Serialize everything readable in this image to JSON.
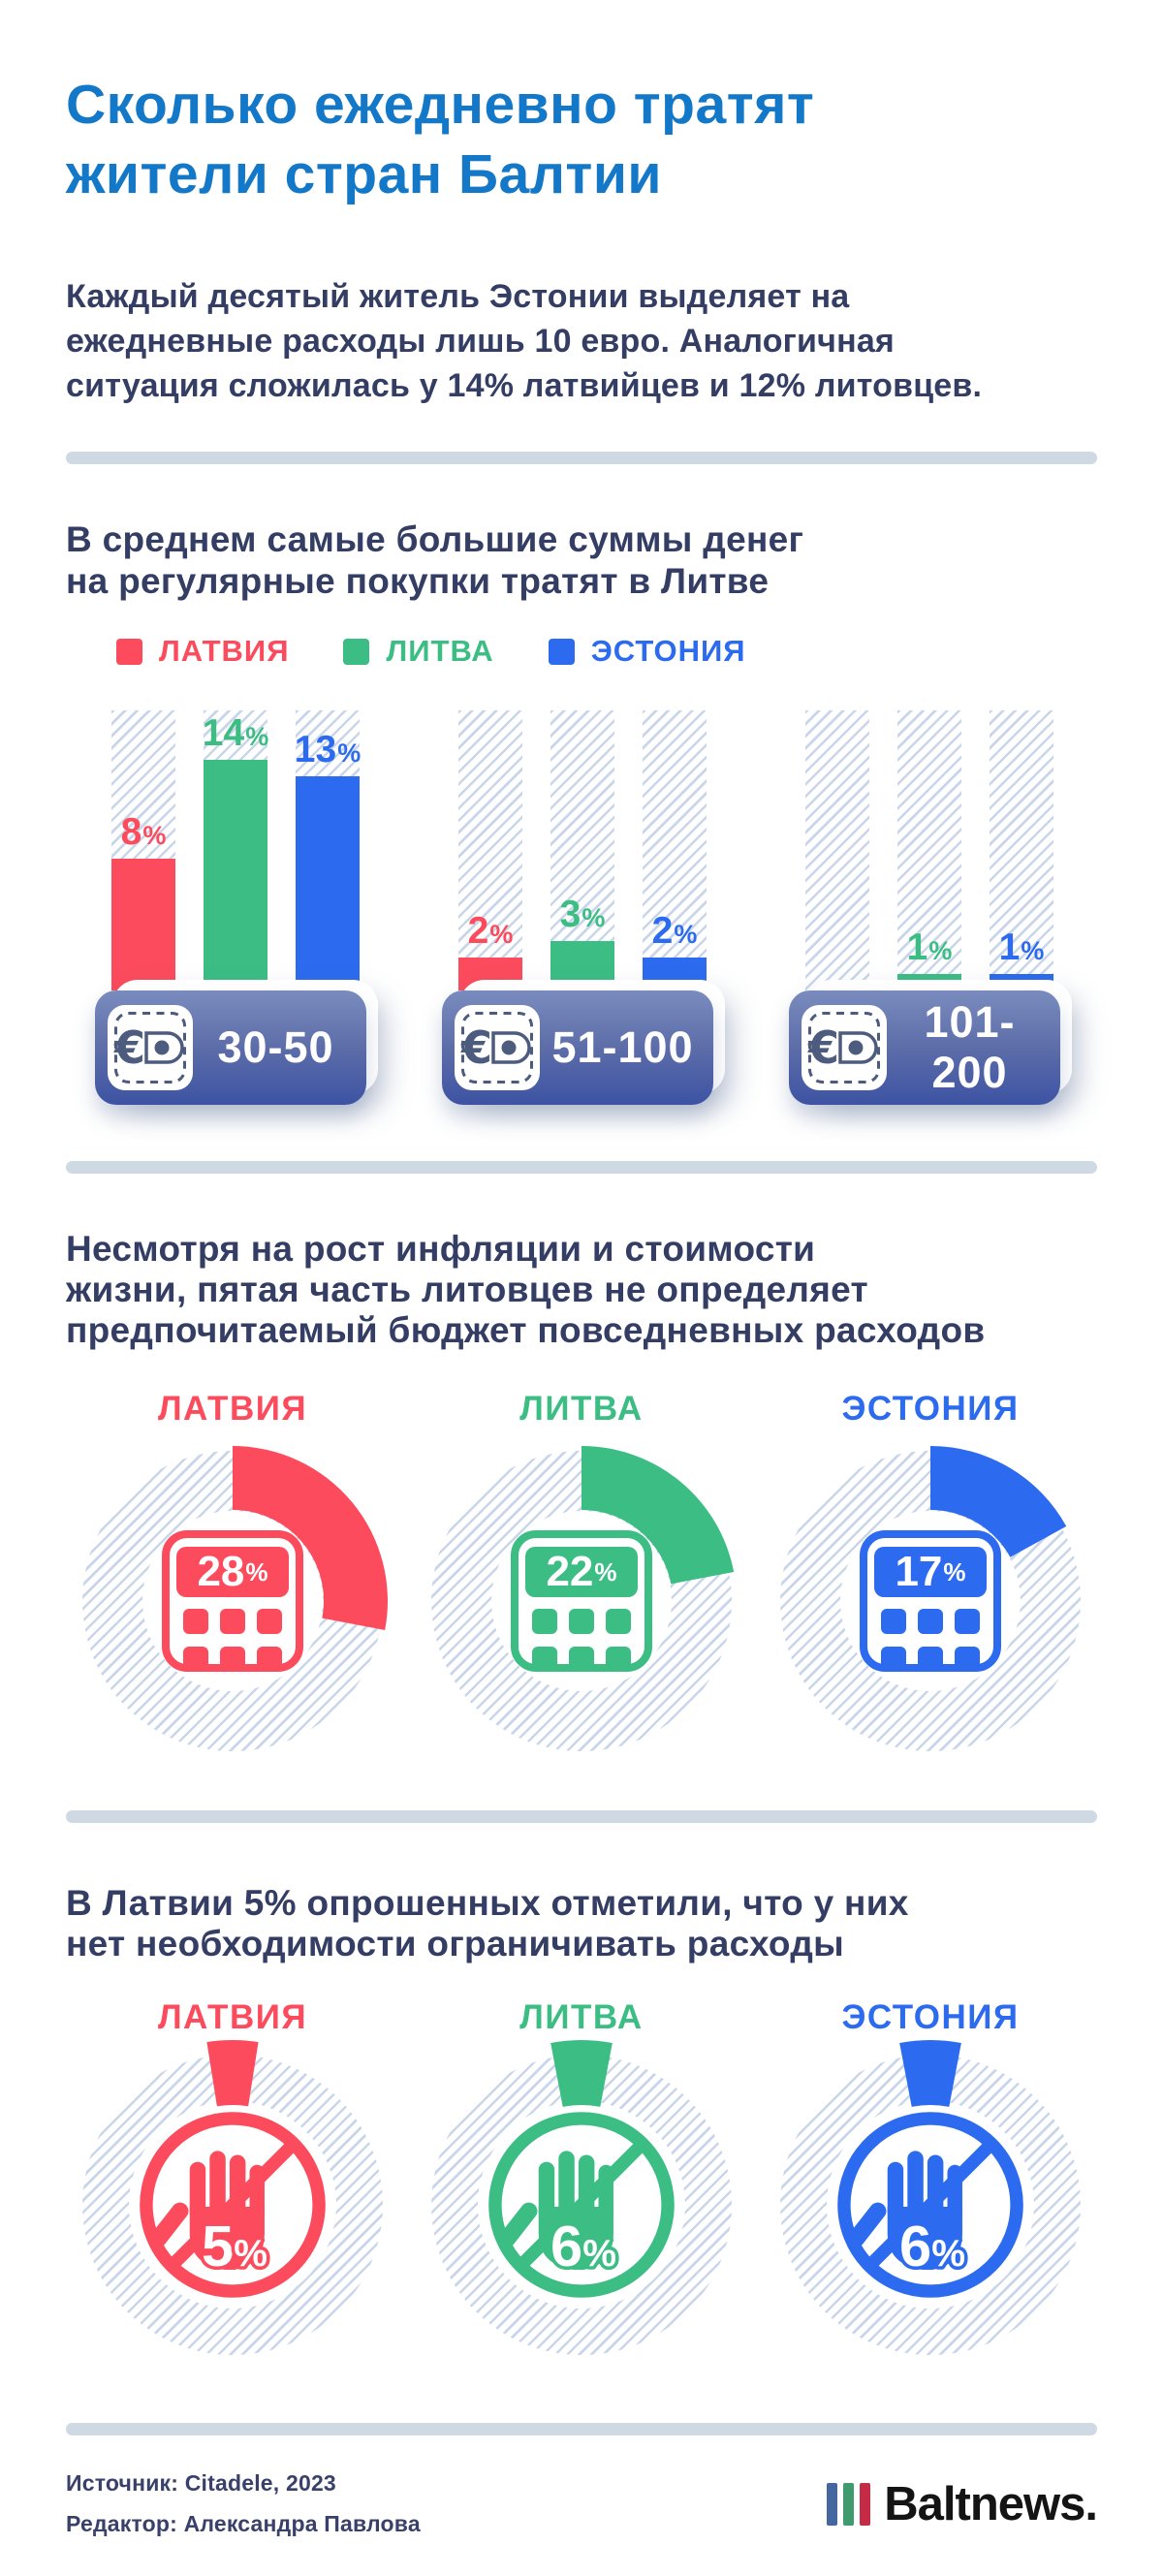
{
  "colors": {
    "title_blue": "#1478C8",
    "body_navy": "#343D63",
    "latvia_red": "#FB4B5C",
    "lithuania_green": "#3BBD84",
    "estonia_blue": "#2C6BEF",
    "hatch": "#C9D6EA",
    "divider": "#CFD9E3",
    "card_gradient_top": "#7A8CBE",
    "card_gradient_bottom": "#3D53A3",
    "wallet_slate": "#4D5B7E",
    "logo_black": "#141414",
    "logo_bar_blue": "#44679F",
    "logo_bar_green": "#3F9A6E",
    "logo_bar_red": "#C52B45"
  },
  "icons": {
    "wallet_currency": "€"
  },
  "header": {
    "title_lines": [
      "Сколько ежедневно тратят",
      "жители стран Балтии"
    ],
    "intro_lines": [
      "Каждый десятый житель Эстонии выделяет на",
      "ежедневные расходы лишь 10 евро. Аналогичная",
      "ситуация сложилась у 14% латвийцев и 12% литовцев."
    ]
  },
  "sections": {
    "spend": {
      "title_lines": [
        "В среднем самые большие суммы денег",
        "на регулярные покупки тратят в Литве"
      ]
    },
    "budget": {
      "title_lines": [
        "Несмотря на рост инфляции и стоимости",
        "жизни, пятая часть литовцев не определяет",
        "предпочитаемый бюджет повседневных расходов"
      ]
    },
    "nolimit": {
      "title_lines": [
        "В Латвии 5% опрошенных отметили, что у них",
        "нет необходимости ограничивать расходы"
      ]
    }
  },
  "chart_data": [
    {
      "type": "bar",
      "title": "В среднем самые большие суммы денег на регулярные покупки тратят в Литве",
      "categories": [
        "30-50",
        "51-100",
        "101-200"
      ],
      "unit": "%",
      "ylim": [
        0,
        17
      ],
      "legend_position": "top",
      "series": [
        {
          "key": "latvia",
          "name": "ЛАТВИЯ",
          "color": "#FB4B5C",
          "values": [
            8,
            2,
            0
          ]
        },
        {
          "key": "lithuania",
          "name": "ЛИТВА",
          "color": "#3BBD84",
          "values": [
            14,
            3,
            1
          ]
        },
        {
          "key": "estonia",
          "name": "ЭСТОНИЯ",
          "color": "#2C6BEF",
          "values": [
            13,
            2,
            1
          ]
        }
      ]
    },
    {
      "type": "donut",
      "title": "Несмотря на рост инфляции и стоимости жизни, пятая часть литовцев не определяет предпочитаемый бюджет повседневных расходов",
      "unit": "%",
      "series": [
        {
          "key": "latvia",
          "name": "ЛАТВИЯ",
          "color": "#FB4B5C",
          "value": 28
        },
        {
          "key": "lithuania",
          "name": "ЛИТВА",
          "color": "#3BBD84",
          "value": 22
        },
        {
          "key": "estonia",
          "name": "ЭСТОНИЯ",
          "color": "#2C6BEF",
          "value": 17
        }
      ]
    },
    {
      "type": "icon-stat",
      "title": "В Латвии 5% опрошенных отметили, что у них нет необходимости ограничивать расходы",
      "unit": "%",
      "series": [
        {
          "key": "latvia",
          "name": "ЛАТВИЯ",
          "color": "#FB4B5C",
          "value": 5
        },
        {
          "key": "lithuania",
          "name": "ЛИТВА",
          "color": "#3BBD84",
          "value": 6
        },
        {
          "key": "estonia",
          "name": "ЭСТОНИЯ",
          "color": "#2C6BEF",
          "value": 6
        }
      ]
    }
  ],
  "footer": {
    "source": "Источник: Citadele, 2023",
    "editor": "Редактор: Александра Павлова",
    "brand": "Baltnews."
  }
}
